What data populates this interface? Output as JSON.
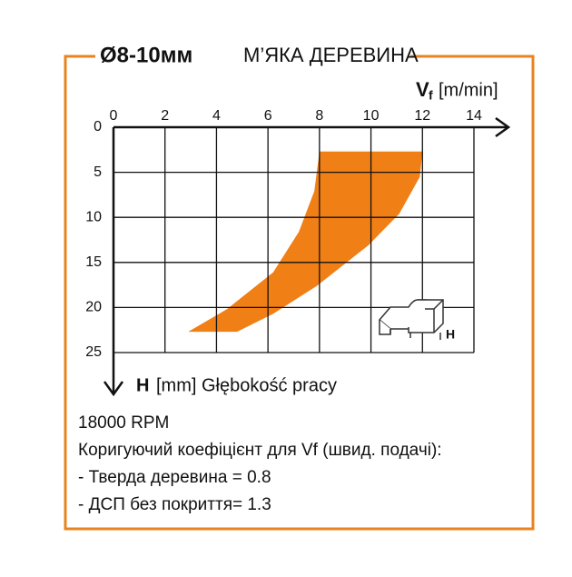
{
  "chart_data": {
    "type": "region",
    "title": "Ø8-10мм",
    "subtitle": "М’ЯКА ДЕРЕВИНА",
    "x_label": "V",
    "x_label_sub": "f",
    "x_label_unit": "[m/min]",
    "y_label": "H",
    "y_label_text": "[mm] Głębokość pracy",
    "x": [
      8.0,
      12.0,
      11.9,
      11.1,
      9.9,
      7.9,
      6.2,
      4.8,
      2.9,
      4.4,
      6.2,
      7.2,
      7.8
    ],
    "y": [
      2.7,
      2.7,
      5.5,
      9.6,
      13.1,
      17.6,
      20.7,
      22.7,
      22.7,
      20.2,
      16.1,
      11.6,
      7.1
    ],
    "color": "#f07f16",
    "xlim": [
      0,
      14
    ],
    "xticks": [
      0,
      2,
      4,
      6,
      8,
      10,
      12,
      14
    ],
    "ylim": [
      0,
      25
    ],
    "yticks": [
      0,
      5,
      10,
      15,
      20,
      25
    ],
    "y_inverted": true,
    "grid": true,
    "icon_label": "H",
    "notes": [
      "18000 RPM",
      "Коригуючий коефіцієнт для Vf (швид. подачі):",
      "- Тверда деревина  = 0.8",
      "- ДСП без покриття= 1.3"
    ]
  }
}
